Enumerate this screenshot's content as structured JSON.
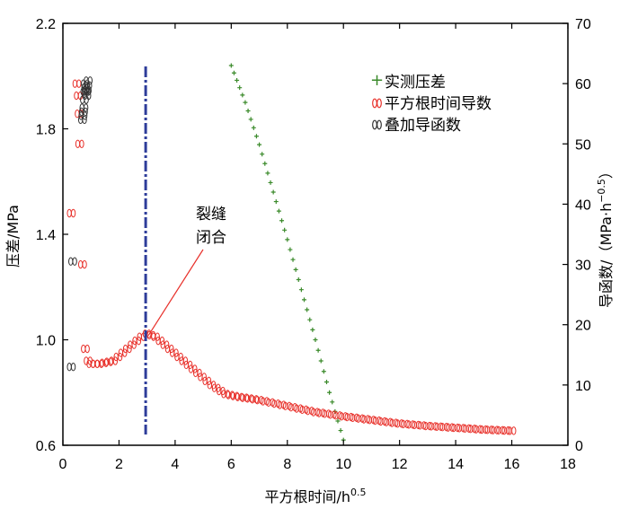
{
  "chart_data": {
    "type": "scatter",
    "xlabel": "平方根时间/h",
    "xlabel_sup": "0.5",
    "ylabel": "压差/MPa",
    "y2label": "导函数/（MPa·h",
    "y2label_sup": "−0.5",
    "y2label_end": "）",
    "xlim": [
      0,
      18
    ],
    "ylim": [
      0.6,
      2.2
    ],
    "y2lim": [
      0,
      70
    ],
    "xticks": [
      "0",
      "2",
      "4",
      "6",
      "8",
      "10",
      "12",
      "14",
      "16",
      "18"
    ],
    "yticks": [
      "0.6",
      "1.0",
      "1.4",
      "1.8",
      "2.2"
    ],
    "y2ticks": [
      "0",
      "10",
      "20",
      "30",
      "40",
      "50",
      "60",
      "70"
    ],
    "legend_position": "top-right",
    "series": [
      {
        "name": "实测压差",
        "color": "#3a8a2a",
        "marker": "plus",
        "axis": "left",
        "x": [
          6.0,
          6.5,
          7.0,
          7.5,
          8.0,
          8.5,
          9.0,
          9.5,
          10.0
        ],
        "y": [
          2.04,
          1.9,
          1.74,
          1.56,
          1.38,
          1.19,
          1.0,
          0.8,
          0.62
        ]
      },
      {
        "name": "平方根时间导数",
        "color": "#e8302a",
        "marker": "ring",
        "axis": "right",
        "x": [
          0.3,
          0.5,
          0.6,
          0.7,
          0.8,
          0.9,
          1.0,
          1.3,
          1.8,
          2.3,
          2.8,
          3.0,
          3.3,
          3.8,
          4.3,
          4.8,
          5.3,
          5.8,
          6.3,
          7.0,
          8.0,
          9.0,
          10.0,
          11.0,
          12.0,
          13.0,
          14.0,
          15.0,
          16.0
        ],
        "y": [
          38.5,
          60.0,
          50.0,
          30.0,
          16.0,
          14.0,
          13.5,
          13.5,
          14.0,
          16.0,
          18.0,
          18.5,
          18.0,
          16.0,
          14.0,
          12.0,
          10.0,
          8.5,
          8.0,
          7.5,
          6.5,
          5.5,
          4.8,
          4.2,
          3.6,
          3.2,
          2.9,
          2.6,
          2.4
        ]
      },
      {
        "name": "叠加导函数",
        "color": "#333333",
        "marker": "ring",
        "axis": "right",
        "x": [
          0.3,
          0.35,
          0.7,
          0.75,
          0.8,
          0.85,
          0.9
        ],
        "y": [
          13.0,
          30.5,
          54.0,
          56.0,
          60.0,
          58.0,
          60.5
        ]
      }
    ],
    "vline": {
      "x": 2.95,
      "color": "#2e3d9a"
    },
    "annotation": {
      "lines": [
        "裂缝",
        "闭合"
      ],
      "x": 2.95,
      "y2": 18.5
    }
  }
}
